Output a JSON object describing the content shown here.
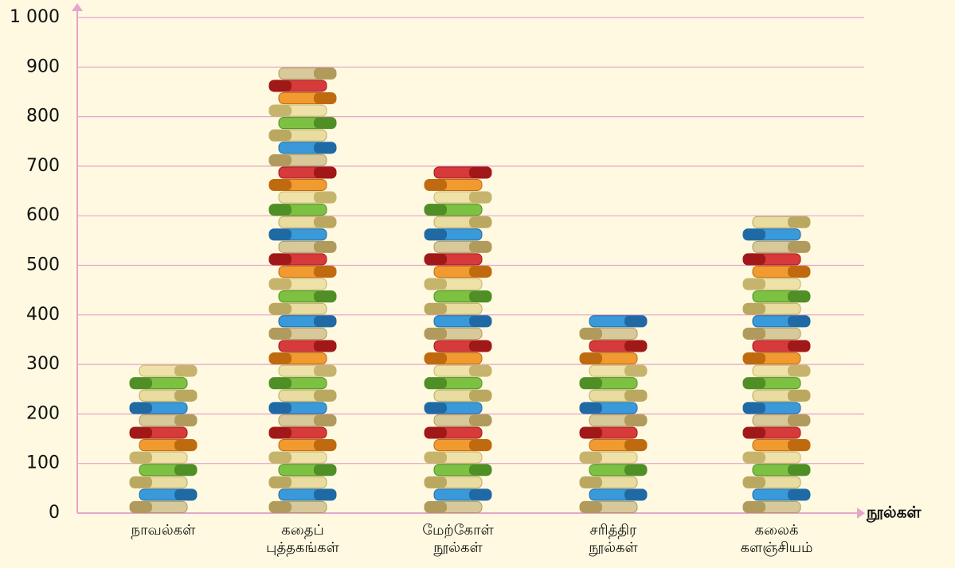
{
  "chart_data": {
    "type": "pictograph",
    "x_label": "நூல்கள்",
    "categories": [
      "நாவல்கள்",
      "கதைப் புத்தகங்கள்",
      "மேற்கோள் நூல்கள்",
      "சரித்திர நூல்கள்",
      "கலைக் களஞ்சியம்"
    ],
    "values": [
      300,
      900,
      700,
      400,
      600
    ],
    "ylim": [
      0,
      1000
    ],
    "yticks": [
      0,
      100,
      200,
      300,
      400,
      500,
      600,
      700,
      800,
      900,
      {
        "value": 1000,
        "label": "1 000"
      }
    ],
    "grid": true,
    "grid_color": "#e8a4cc"
  }
}
